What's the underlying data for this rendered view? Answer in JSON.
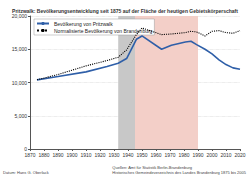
{
  "chart_data": {
    "type": "line",
    "title": "Pritzwalk: Bevölkerungsentwicklung seit 1875 auf der Fläche der heutigen Gebietskörperschaft",
    "x": [
      1875,
      1890,
      1910,
      1925,
      1933,
      1939,
      1946,
      1950,
      1964,
      1971,
      1981,
      1985,
      1989,
      1995,
      2000,
      2005,
      2010,
      2015,
      2020
    ],
    "series": [
      {
        "name": "Bevölkerung von Pritzwalk",
        "color": "#2f5fa8",
        "line_style": "solid",
        "values": [
          10400,
          10900,
          11600,
          12400,
          12900,
          13600,
          16500,
          17000,
          15000,
          15600,
          16100,
          16200,
          15700,
          15000,
          14300,
          13400,
          12700,
          12200,
          12000
        ]
      },
      {
        "name": "Normalisierte Bevölkerung von Brandenburg",
        "color": "#000000",
        "line_style": "dotted",
        "values": [
          10400,
          11200,
          12500,
          13300,
          13800,
          14900,
          17200,
          18200,
          17200,
          17300,
          17500,
          17700,
          17600,
          17000,
          17700,
          17800,
          17500,
          17400,
          17800
        ]
      }
    ],
    "shaded_periods": [
      {
        "from": 1933,
        "to": 1945,
        "color": "#c8c8c8"
      },
      {
        "from": 1945,
        "to": 1990,
        "color": "#f3cfc8"
      }
    ],
    "xlim": [
      1870,
      2020
    ],
    "xticks": [
      1870,
      1880,
      1890,
      1900,
      1910,
      1920,
      1930,
      1940,
      1950,
      1960,
      1970,
      1980,
      1990,
      2000,
      2010,
      2020
    ],
    "ylim": [
      0,
      20000
    ],
    "yticks": [
      0,
      {
        "value": 5000,
        "label": "5,000"
      },
      {
        "value": 10000,
        "label": "10,000"
      },
      {
        "value": 15000,
        "label": "15,000"
      },
      {
        "value": 20000,
        "label": "20,000"
      }
    ],
    "grid": true,
    "legend": "upper left",
    "credit": "Datum: Hans G. Oberlack",
    "footer": [
      "Quellen: Amt für Statistik Berlin-Brandenburg",
      "Historisches Gemeindeverzeichnis des Landes Brandenburg 1875 bis 2005"
    ]
  }
}
